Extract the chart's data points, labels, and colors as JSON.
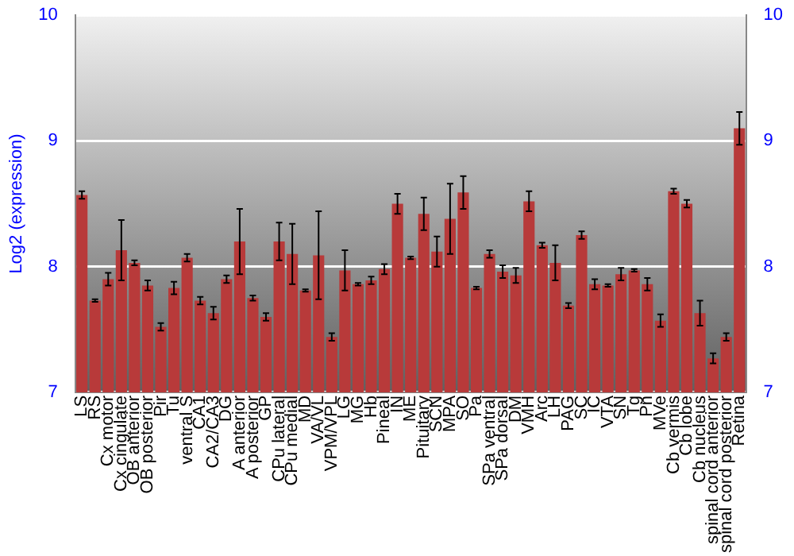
{
  "chart_data": {
    "type": "bar",
    "ylabel": "Log2 (expression)",
    "categories": [
      "LS",
      "RS",
      "Cx motor",
      "Cx cingulate",
      "OB anterior",
      "OB posterior",
      "Pir",
      "Tu",
      "ventral S",
      "CA1",
      "CA2/CA3",
      "DG",
      "A anterior",
      "A posterior",
      "GP",
      "CPu lateral",
      "CPu medial",
      "MD",
      "VA/VL",
      "VPM/VPL",
      "LG",
      "MG",
      "Hb",
      "Pineal",
      "IN",
      "ME",
      "Pituitary",
      "SCN",
      "MPA",
      "SO",
      "Pa",
      "SPa ventral",
      "SPa dorsal",
      "DM",
      "VMH",
      "Arc",
      "LH",
      "PAG",
      "SC",
      "IC",
      "VTA",
      "SN",
      "Tg",
      "Pn",
      "MVe",
      "Cb vermis",
      "Cb lobe",
      "Cb nucleus",
      "spinal cord anterior",
      "spinal cord posterior",
      "Retina"
    ],
    "values": [
      8.57,
      7.73,
      7.9,
      8.13,
      8.03,
      7.85,
      7.52,
      7.83,
      8.07,
      7.73,
      7.63,
      7.9,
      8.2,
      7.75,
      7.6,
      8.2,
      8.1,
      7.81,
      8.09,
      7.44,
      7.97,
      7.86,
      7.89,
      7.98,
      8.5,
      8.07,
      8.42,
      8.12,
      8.38,
      8.59,
      7.83,
      8.1,
      7.96,
      7.93,
      8.52,
      8.17,
      8.03,
      7.69,
      8.25,
      7.86,
      7.85,
      7.94,
      7.97,
      7.86,
      7.57,
      8.6,
      8.5,
      7.63,
      7.27,
      7.44,
      9.1
    ],
    "errors": [
      0.03,
      0.01,
      0.05,
      0.24,
      0.02,
      0.04,
      0.03,
      0.05,
      0.03,
      0.03,
      0.05,
      0.03,
      0.26,
      0.02,
      0.03,
      0.15,
      0.24,
      0.01,
      0.35,
      0.03,
      0.16,
      0.01,
      0.03,
      0.04,
      0.08,
      0.01,
      0.13,
      0.12,
      0.28,
      0.13,
      0.01,
      0.03,
      0.05,
      0.06,
      0.08,
      0.02,
      0.14,
      0.02,
      0.03,
      0.04,
      0.01,
      0.05,
      0.01,
      0.05,
      0.05,
      0.02,
      0.03,
      0.1,
      0.04,
      0.03,
      0.13
    ],
    "color": "#b83a3a",
    "ylim": [
      7,
      10
    ],
    "yticks": [
      7,
      8,
      9,
      10
    ],
    "y2lim": [
      7,
      10
    ],
    "y2ticks": [
      7,
      8,
      9,
      10
    ],
    "grid": "y"
  }
}
